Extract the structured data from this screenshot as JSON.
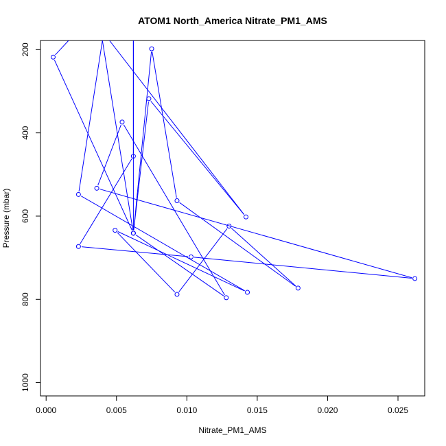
{
  "chart_data": {
    "type": "line",
    "title": "ATOM1 North_America Nitrate_PM1_AMS",
    "xlabel": "Nitrate_PM1_AMS",
    "ylabel": "Pressure (mbar)",
    "xlim": [
      -0.0004,
      0.0269
    ],
    "ylim": [
      1032,
      178
    ],
    "y_reversed": true,
    "x_ticks": [
      0.0,
      0.005,
      0.01,
      0.015,
      0.02,
      0.025
    ],
    "x_tick_labels": [
      "0.000",
      "0.005",
      "0.010",
      "0.015",
      "0.020",
      "0.025"
    ],
    "y_ticks": [
      200,
      400,
      600,
      800,
      1000
    ],
    "y_tick_labels": [
      "200",
      "400",
      "600",
      "800",
      "1000"
    ],
    "grid": false,
    "legend": "none",
    "series": [
      {
        "color": "#0000ff",
        "marker": "open-circle",
        "line": true,
        "points": [
          {
            "x": 0.0016,
            "y": 178,
            "marker": false
          },
          {
            "x": 0.0005,
            "y": 218
          },
          {
            "x": 0.0062,
            "y": 641
          },
          {
            "x": 0.004,
            "y": 178,
            "marker": false
          },
          {
            "x": 0.0023,
            "y": 548
          },
          {
            "x": 0.0143,
            "y": 783
          },
          {
            "x": 0.0049,
            "y": 634
          },
          {
            "x": 0.0093,
            "y": 788
          },
          {
            "x": 0.013,
            "y": 624
          },
          {
            "x": 0.0179,
            "y": 773
          },
          {
            "x": 0.0093,
            "y": 563
          },
          {
            "x": 0.0075,
            "y": 198
          },
          {
            "x": 0.0062,
            "y": 641
          },
          {
            "x": 0.0128,
            "y": 796
          },
          {
            "x": 0.0054,
            "y": 374
          },
          {
            "x": 0.0036,
            "y": 533
          },
          {
            "x": 0.0262,
            "y": 750
          },
          {
            "x": 0.0103,
            "y": 698
          },
          {
            "x": 0.0023,
            "y": 673
          },
          {
            "x": 0.0062,
            "y": 456
          },
          {
            "x": 0.0062,
            "y": 178,
            "marker": false
          },
          {
            "x": 0.0062,
            "y": 641
          },
          {
            "x": 0.0073,
            "y": 318
          },
          {
            "x": 0.0142,
            "y": 602
          },
          {
            "x": 0.0045,
            "y": 178,
            "marker": false
          }
        ]
      }
    ]
  }
}
